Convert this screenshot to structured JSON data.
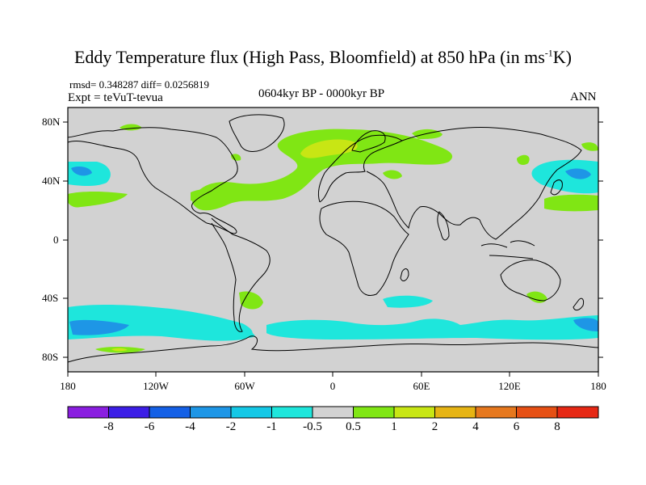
{
  "title_main": "Eddy Temperature flux (High Pass, Bloomfield) at 850 hPa (in ms",
  "title_sup": "-1",
  "title_end": "K)",
  "stats": "rmsd= 0.348287 diff= 0.0256819",
  "expt": "Expt = teVuT-tevua",
  "period": "0604kyr BP - 0000kyr BP",
  "season": "ANN",
  "lat_ticks": [
    {
      "value": 80,
      "label": "80N"
    },
    {
      "value": 40,
      "label": "40N"
    },
    {
      "value": 0,
      "label": "0"
    },
    {
      "value": -40,
      "label": "40S"
    },
    {
      "value": -80,
      "label": "80S"
    }
  ],
  "lon_ticks": [
    {
      "value": -180,
      "label": "180"
    },
    {
      "value": -120,
      "label": "120W"
    },
    {
      "value": -60,
      "label": "60W"
    },
    {
      "value": 0,
      "label": "0"
    },
    {
      "value": 60,
      "label": "60E"
    },
    {
      "value": 120,
      "label": "120E"
    },
    {
      "value": 180,
      "label": "180"
    }
  ],
  "colorbar": {
    "labels": [
      "-8",
      "-6",
      "-4",
      "-2",
      "-1",
      "-0.5",
      "0.5",
      "1",
      "2",
      "4",
      "6",
      "8"
    ],
    "colors": [
      "#8a1ee0",
      "#3c1ee6",
      "#1460e6",
      "#1e96e6",
      "#14c8e6",
      "#1ee6dc",
      "#d2d2d2",
      "#80e614",
      "#c8e614",
      "#e6b414",
      "#e6781e",
      "#e65014",
      "#e62814"
    ]
  },
  "colors": {
    "background": "#d2d2d2",
    "cyan": "#1ee6dc",
    "cyan_dark": "#14c8e6",
    "blue": "#1e96e6",
    "green": "#80e614",
    "yellow": "#c8e614"
  }
}
